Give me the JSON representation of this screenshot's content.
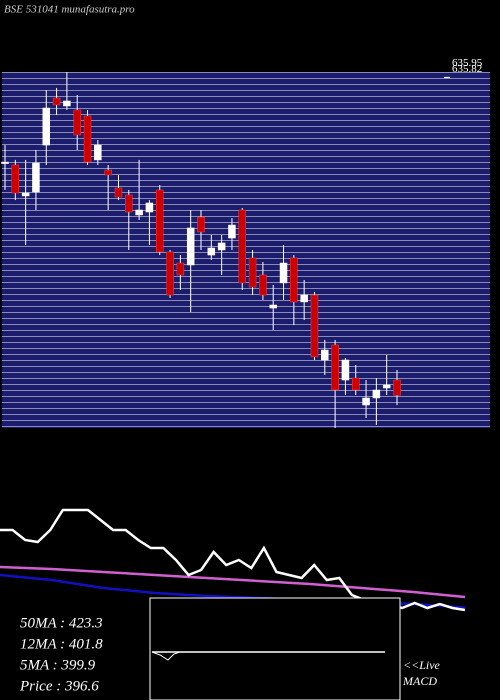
{
  "chart_data": [
    {
      "type": "candlestick",
      "title": "BSE 531041 munafasutra.pro",
      "ylim": [
        372,
        640
      ],
      "yticks": [
        635.95,
        635.82
      ],
      "up_color": "#ffffff",
      "down_color": "#cc0000",
      "candles": [
        {
          "open": 572.2,
          "high": 585.0,
          "low": 551.2,
          "close": 572.2
        },
        {
          "open": 570.0,
          "high": 573.8,
          "low": 543.6,
          "close": 548.9
        },
        {
          "open": 546.7,
          "high": 573.8,
          "low": 509.8,
          "close": 548.9
        },
        {
          "open": 549.7,
          "high": 581.3,
          "low": 536.1,
          "close": 571.5
        },
        {
          "open": 585.0,
          "high": 626.4,
          "low": 570.0,
          "close": 612.9
        },
        {
          "open": 620.4,
          "high": 628.0,
          "low": 607.6,
          "close": 615.2
        },
        {
          "open": 614.4,
          "high": 640.0,
          "low": 611.4,
          "close": 618.2
        },
        {
          "open": 611.4,
          "high": 622.7,
          "low": 581.3,
          "close": 592.6
        },
        {
          "open": 606.9,
          "high": 611.4,
          "low": 570.0,
          "close": 572.2
        },
        {
          "open": 573.8,
          "high": 588.8,
          "low": 570.0,
          "close": 585.0
        },
        {
          "open": 566.2,
          "high": 570.0,
          "low": 536.1,
          "close": 562.5
        },
        {
          "open": 552.7,
          "high": 562.5,
          "low": 543.6,
          "close": 545.9
        },
        {
          "open": 547.4,
          "high": 551.2,
          "low": 506.0,
          "close": 534.6
        },
        {
          "open": 532.4,
          "high": 573.8,
          "low": 528.6,
          "close": 536.1
        },
        {
          "open": 534.6,
          "high": 543.6,
          "low": 509.8,
          "close": 541.4
        },
        {
          "open": 551.2,
          "high": 554.9,
          "low": 502.2,
          "close": 504.5
        },
        {
          "open": 504.5,
          "high": 506.0,
          "low": 469.9,
          "close": 472.1
        },
        {
          "open": 496.2,
          "high": 502.2,
          "low": 475.9,
          "close": 487.2
        },
        {
          "open": 494.7,
          "high": 536.1,
          "low": 459.3,
          "close": 522.6
        },
        {
          "open": 530.8,
          "high": 536.1,
          "low": 506.0,
          "close": 519.6
        },
        {
          "open": 502.2,
          "high": 517.3,
          "low": 498.5,
          "close": 507.5
        },
        {
          "open": 506.0,
          "high": 517.3,
          "low": 487.2,
          "close": 511.3
        },
        {
          "open": 515.0,
          "high": 530.1,
          "low": 506.0,
          "close": 524.8
        },
        {
          "open": 536.1,
          "high": 537.6,
          "low": 475.9,
          "close": 481.2
        },
        {
          "open": 500.0,
          "high": 506.0,
          "low": 472.1,
          "close": 478.1
        },
        {
          "open": 487.2,
          "high": 497.0,
          "low": 468.4,
          "close": 472.1
        },
        {
          "open": 462.3,
          "high": 479.7,
          "low": 445.8,
          "close": 464.6
        },
        {
          "open": 481.2,
          "high": 509.8,
          "low": 468.4,
          "close": 496.2
        },
        {
          "open": 500.0,
          "high": 502.2,
          "low": 449.5,
          "close": 466.9
        },
        {
          "open": 466.9,
          "high": 483.4,
          "low": 453.3,
          "close": 472.1
        },
        {
          "open": 472.1,
          "high": 474.4,
          "low": 423.2,
          "close": 425.5
        },
        {
          "open": 423.2,
          "high": 438.3,
          "low": 411.9,
          "close": 430.7
        },
        {
          "open": 434.5,
          "high": 438.3,
          "low": 372.0,
          "close": 400.6
        },
        {
          "open": 408.1,
          "high": 424.7,
          "low": 396.8,
          "close": 423.2
        },
        {
          "open": 409.6,
          "high": 419.4,
          "low": 396.8,
          "close": 400.6
        },
        {
          "open": 389.3,
          "high": 408.1,
          "low": 379.5,
          "close": 394.6
        },
        {
          "open": 394.6,
          "high": 409.6,
          "low": 374.3,
          "close": 400.6
        },
        {
          "open": 402.1,
          "high": 427.0,
          "low": 396.8,
          "close": 404.4
        },
        {
          "open": 408.1,
          "high": 415.7,
          "low": 389.3,
          "close": 396.6
        }
      ]
    },
    {
      "type": "line",
      "ylim": [
        335.1,
        663.1
      ],
      "series": [
        {
          "color": "#ffffff",
          "values": [
            560.6,
            560.6,
            540.1,
            536.0,
            560.6,
            601.6,
            601.6,
            601.6,
            581.1,
            560.6,
            560.6,
            540.1,
            523.7,
            523.7,
            499.1,
            468.4,
            478.6,
            515.5,
            488.9,
            499.1,
            482.7,
            523.7,
            474.5,
            468.4,
            462.2,
            488.9,
            458.1,
            462.2,
            427.4,
            417.1,
            417.1,
            406.9,
            400.7,
            411.0,
            400.7,
            408.9,
            400.7,
            396.6
          ]
        },
        {
          "color": "#1010c0",
          "values": [
            468.4,
            458.1,
            441.7,
            431.4,
            425.2,
            421.1,
            417.1,
            413.0,
            408.9,
            401.8
          ]
        },
        {
          "color": "#d060d0",
          "values": [
            484.8,
            480.7,
            474.5,
            468.4,
            462.2,
            456.1,
            449.9,
            441.7,
            433.5,
            423.3
          ]
        }
      ],
      "info": [
        "50MA : 423.3",
        "12MA : 401.8",
        "5MA : 399.9",
        "Price   : 396.6"
      ],
      "live": "<<Live",
      "macd": "MACD"
    }
  ]
}
